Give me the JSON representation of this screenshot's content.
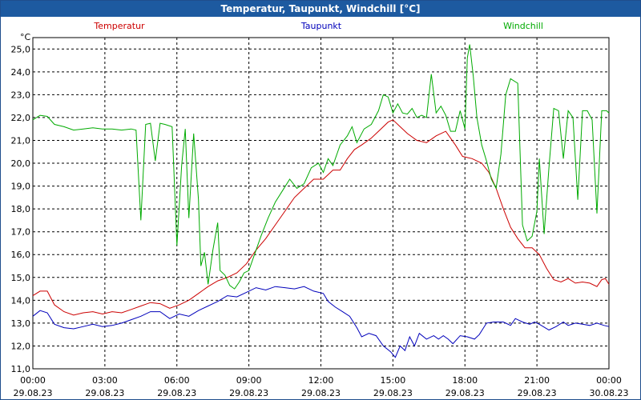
{
  "window": {
    "title": "Temperatur, Taupunkt, Windchill [°C]"
  },
  "chart_data": {
    "type": "line",
    "title": "Temperatur, Taupunkt, Windchill [°C]",
    "ylabel": "°C",
    "xlabel": "",
    "ylim": [
      11.0,
      25.5
    ],
    "grid": true,
    "y_ticks": [
      "11,0",
      "12,0",
      "13,0",
      "14,0",
      "15,0",
      "16,0",
      "17,0",
      "18,0",
      "19,0",
      "20,0",
      "21,0",
      "22,0",
      "23,0",
      "24,0",
      "25,0"
    ],
    "x_ticks": [
      {
        "time": "00:00",
        "date": "29.08.23"
      },
      {
        "time": "03:00",
        "date": "29.08.23"
      },
      {
        "time": "06:00",
        "date": "29.08.23"
      },
      {
        "time": "09:00",
        "date": "29.08.23"
      },
      {
        "time": "12:00",
        "date": "29.08.23"
      },
      {
        "time": "15:00",
        "date": "29.08.23"
      },
      {
        "time": "18:00",
        "date": "29.08.23"
      },
      {
        "time": "21:00",
        "date": "29.08.23"
      },
      {
        "time": "00:00",
        "date": "30.08.23"
      }
    ],
    "series": [
      {
        "name": "Temperatur",
        "color": "#cc0000",
        "points": [
          [
            0,
            14.2
          ],
          [
            0.3,
            14.4
          ],
          [
            0.6,
            14.4
          ],
          [
            0.9,
            13.8
          ],
          [
            1.3,
            13.5
          ],
          [
            1.7,
            13.35
          ],
          [
            2.1,
            13.45
          ],
          [
            2.5,
            13.5
          ],
          [
            2.9,
            13.4
          ],
          [
            3.3,
            13.5
          ],
          [
            3.7,
            13.45
          ],
          [
            4.1,
            13.6
          ],
          [
            4.5,
            13.75
          ],
          [
            4.9,
            13.9
          ],
          [
            5.3,
            13.85
          ],
          [
            5.7,
            13.65
          ],
          [
            6.1,
            13.8
          ],
          [
            6.5,
            14.0
          ],
          [
            6.9,
            14.3
          ],
          [
            7.3,
            14.6
          ],
          [
            7.7,
            14.85
          ],
          [
            8.1,
            15.0
          ],
          [
            8.5,
            15.2
          ],
          [
            8.9,
            15.6
          ],
          [
            9.3,
            16.2
          ],
          [
            9.7,
            16.7
          ],
          [
            10.1,
            17.3
          ],
          [
            10.5,
            17.9
          ],
          [
            10.9,
            18.5
          ],
          [
            11.3,
            18.9
          ],
          [
            11.7,
            19.3
          ],
          [
            12.1,
            19.3
          ],
          [
            12.5,
            19.7
          ],
          [
            12.8,
            19.7
          ],
          [
            13.1,
            20.2
          ],
          [
            13.4,
            20.6
          ],
          [
            13.7,
            20.8
          ],
          [
            14.1,
            21.1
          ],
          [
            14.5,
            21.5
          ],
          [
            14.8,
            21.8
          ],
          [
            15.0,
            21.9
          ],
          [
            15.3,
            21.6
          ],
          [
            15.6,
            21.3
          ],
          [
            16.0,
            21.0
          ],
          [
            16.4,
            20.9
          ],
          [
            16.8,
            21.2
          ],
          [
            17.2,
            21.4
          ],
          [
            17.6,
            20.8
          ],
          [
            17.9,
            20.3
          ],
          [
            18.3,
            20.2
          ],
          [
            18.7,
            20.0
          ],
          [
            19.0,
            19.6
          ],
          [
            19.3,
            18.9
          ],
          [
            19.6,
            18.0
          ],
          [
            19.9,
            17.2
          ],
          [
            20.2,
            16.7
          ],
          [
            20.5,
            16.3
          ],
          [
            20.8,
            16.3
          ],
          [
            21.1,
            16.0
          ],
          [
            21.4,
            15.4
          ],
          [
            21.7,
            14.9
          ],
          [
            22.0,
            14.8
          ],
          [
            22.3,
            14.95
          ],
          [
            22.6,
            14.75
          ],
          [
            22.9,
            14.8
          ],
          [
            23.2,
            14.75
          ],
          [
            23.5,
            14.6
          ],
          [
            23.7,
            14.9
          ],
          [
            23.85,
            14.95
          ],
          [
            24.0,
            14.7
          ]
        ]
      },
      {
        "name": "Taupunkt",
        "color": "#0000bb",
        "points": [
          [
            0,
            13.3
          ],
          [
            0.3,
            13.55
          ],
          [
            0.6,
            13.45
          ],
          [
            0.9,
            12.95
          ],
          [
            1.3,
            12.8
          ],
          [
            1.7,
            12.75
          ],
          [
            2.1,
            12.85
          ],
          [
            2.5,
            12.95
          ],
          [
            2.9,
            12.85
          ],
          [
            3.3,
            12.9
          ],
          [
            3.7,
            13.0
          ],
          [
            4.1,
            13.15
          ],
          [
            4.5,
            13.3
          ],
          [
            4.9,
            13.5
          ],
          [
            5.3,
            13.5
          ],
          [
            5.7,
            13.2
          ],
          [
            6.1,
            13.4
          ],
          [
            6.5,
            13.3
          ],
          [
            6.9,
            13.55
          ],
          [
            7.3,
            13.75
          ],
          [
            7.7,
            13.95
          ],
          [
            8.1,
            14.2
          ],
          [
            8.5,
            14.15
          ],
          [
            8.9,
            14.35
          ],
          [
            9.3,
            14.55
          ],
          [
            9.7,
            14.45
          ],
          [
            10.1,
            14.6
          ],
          [
            10.5,
            14.55
          ],
          [
            10.9,
            14.5
          ],
          [
            11.3,
            14.6
          ],
          [
            11.7,
            14.4
          ],
          [
            12.1,
            14.3
          ],
          [
            12.3,
            13.95
          ],
          [
            12.6,
            13.7
          ],
          [
            12.9,
            13.5
          ],
          [
            13.2,
            13.3
          ],
          [
            13.5,
            12.8
          ],
          [
            13.7,
            12.4
          ],
          [
            14.0,
            12.55
          ],
          [
            14.3,
            12.45
          ],
          [
            14.6,
            12.0
          ],
          [
            14.9,
            11.75
          ],
          [
            15.1,
            11.5
          ],
          [
            15.3,
            12.0
          ],
          [
            15.5,
            11.8
          ],
          [
            15.7,
            12.4
          ],
          [
            15.9,
            12.0
          ],
          [
            16.1,
            12.55
          ],
          [
            16.4,
            12.3
          ],
          [
            16.7,
            12.45
          ],
          [
            16.9,
            12.3
          ],
          [
            17.1,
            12.45
          ],
          [
            17.3,
            12.3
          ],
          [
            17.5,
            12.1
          ],
          [
            17.8,
            12.45
          ],
          [
            18.1,
            12.4
          ],
          [
            18.4,
            12.3
          ],
          [
            18.6,
            12.5
          ],
          [
            18.9,
            13.0
          ],
          [
            19.2,
            13.05
          ],
          [
            19.6,
            13.05
          ],
          [
            19.9,
            12.9
          ],
          [
            20.1,
            13.2
          ],
          [
            20.4,
            13.05
          ],
          [
            20.7,
            12.95
          ],
          [
            20.9,
            13.05
          ],
          [
            21.1,
            12.95
          ],
          [
            21.5,
            12.7
          ],
          [
            21.8,
            12.85
          ],
          [
            22.1,
            13.05
          ],
          [
            22.3,
            12.9
          ],
          [
            22.6,
            13.0
          ],
          [
            22.9,
            12.95
          ],
          [
            23.2,
            12.9
          ],
          [
            23.5,
            13.0
          ],
          [
            23.8,
            12.9
          ],
          [
            24.0,
            12.85
          ]
        ]
      },
      {
        "name": "Windchill",
        "color": "#00aa00",
        "points": [
          [
            0,
            21.9
          ],
          [
            0.3,
            22.1
          ],
          [
            0.6,
            22.05
          ],
          [
            0.9,
            21.7
          ],
          [
            1.3,
            21.6
          ],
          [
            1.7,
            21.45
          ],
          [
            2.1,
            21.5
          ],
          [
            2.5,
            21.55
          ],
          [
            2.9,
            21.5
          ],
          [
            3.3,
            21.5
          ],
          [
            3.7,
            21.45
          ],
          [
            4.1,
            21.5
          ],
          [
            4.3,
            21.45
          ],
          [
            4.5,
            17.5
          ],
          [
            4.7,
            21.7
          ],
          [
            4.9,
            21.75
          ],
          [
            5.1,
            20.1
          ],
          [
            5.3,
            21.75
          ],
          [
            5.5,
            21.7
          ],
          [
            5.8,
            21.6
          ],
          [
            6.0,
            16.4
          ],
          [
            6.2,
            19.9
          ],
          [
            6.35,
            21.5
          ],
          [
            6.5,
            17.6
          ],
          [
            6.7,
            21.3
          ],
          [
            6.9,
            18.4
          ],
          [
            7.0,
            15.5
          ],
          [
            7.15,
            16.1
          ],
          [
            7.3,
            14.7
          ],
          [
            7.5,
            16.2
          ],
          [
            7.7,
            17.4
          ],
          [
            7.8,
            15.3
          ],
          [
            8.0,
            15.1
          ],
          [
            8.2,
            14.65
          ],
          [
            8.4,
            14.5
          ],
          [
            8.6,
            14.8
          ],
          [
            8.8,
            15.2
          ],
          [
            9.0,
            15.3
          ],
          [
            9.2,
            15.9
          ],
          [
            9.5,
            16.8
          ],
          [
            9.8,
            17.6
          ],
          [
            10.1,
            18.3
          ],
          [
            10.4,
            18.8
          ],
          [
            10.7,
            19.3
          ],
          [
            11.0,
            18.9
          ],
          [
            11.3,
            19.1
          ],
          [
            11.6,
            19.8
          ],
          [
            11.9,
            20.0
          ],
          [
            12.1,
            19.6
          ],
          [
            12.3,
            20.2
          ],
          [
            12.5,
            19.9
          ],
          [
            12.8,
            20.8
          ],
          [
            13.1,
            21.2
          ],
          [
            13.3,
            21.6
          ],
          [
            13.5,
            20.9
          ],
          [
            13.8,
            21.5
          ],
          [
            14.1,
            21.7
          ],
          [
            14.4,
            22.3
          ],
          [
            14.6,
            23.0
          ],
          [
            14.8,
            22.9
          ],
          [
            15.0,
            22.2
          ],
          [
            15.2,
            22.6
          ],
          [
            15.4,
            22.2
          ],
          [
            15.6,
            22.15
          ],
          [
            15.8,
            22.4
          ],
          [
            16.0,
            22.0
          ],
          [
            16.2,
            22.1
          ],
          [
            16.4,
            22.0
          ],
          [
            16.6,
            23.9
          ],
          [
            16.8,
            22.2
          ],
          [
            17.0,
            22.5
          ],
          [
            17.2,
            22.1
          ],
          [
            17.4,
            21.4
          ],
          [
            17.6,
            21.4
          ],
          [
            17.8,
            22.3
          ],
          [
            18.0,
            21.5
          ],
          [
            18.1,
            24.6
          ],
          [
            18.2,
            25.2
          ],
          [
            18.35,
            23.8
          ],
          [
            18.5,
            22.0
          ],
          [
            18.7,
            20.8
          ],
          [
            18.9,
            20.1
          ],
          [
            19.1,
            19.3
          ],
          [
            19.3,
            18.9
          ],
          [
            19.5,
            20.4
          ],
          [
            19.7,
            23.0
          ],
          [
            19.9,
            23.7
          ],
          [
            20.2,
            23.5
          ],
          [
            20.4,
            17.3
          ],
          [
            20.6,
            16.6
          ],
          [
            20.8,
            16.8
          ],
          [
            21.0,
            17.9
          ],
          [
            21.1,
            20.2
          ],
          [
            21.3,
            16.9
          ],
          [
            21.5,
            19.8
          ],
          [
            21.7,
            22.4
          ],
          [
            21.9,
            22.3
          ],
          [
            22.1,
            20.2
          ],
          [
            22.3,
            22.3
          ],
          [
            22.5,
            22.0
          ],
          [
            22.7,
            18.4
          ],
          [
            22.9,
            22.3
          ],
          [
            23.1,
            22.3
          ],
          [
            23.3,
            21.9
          ],
          [
            23.5,
            17.8
          ],
          [
            23.7,
            22.3
          ],
          [
            23.9,
            22.3
          ],
          [
            24.0,
            22.2
          ]
        ]
      }
    ]
  }
}
